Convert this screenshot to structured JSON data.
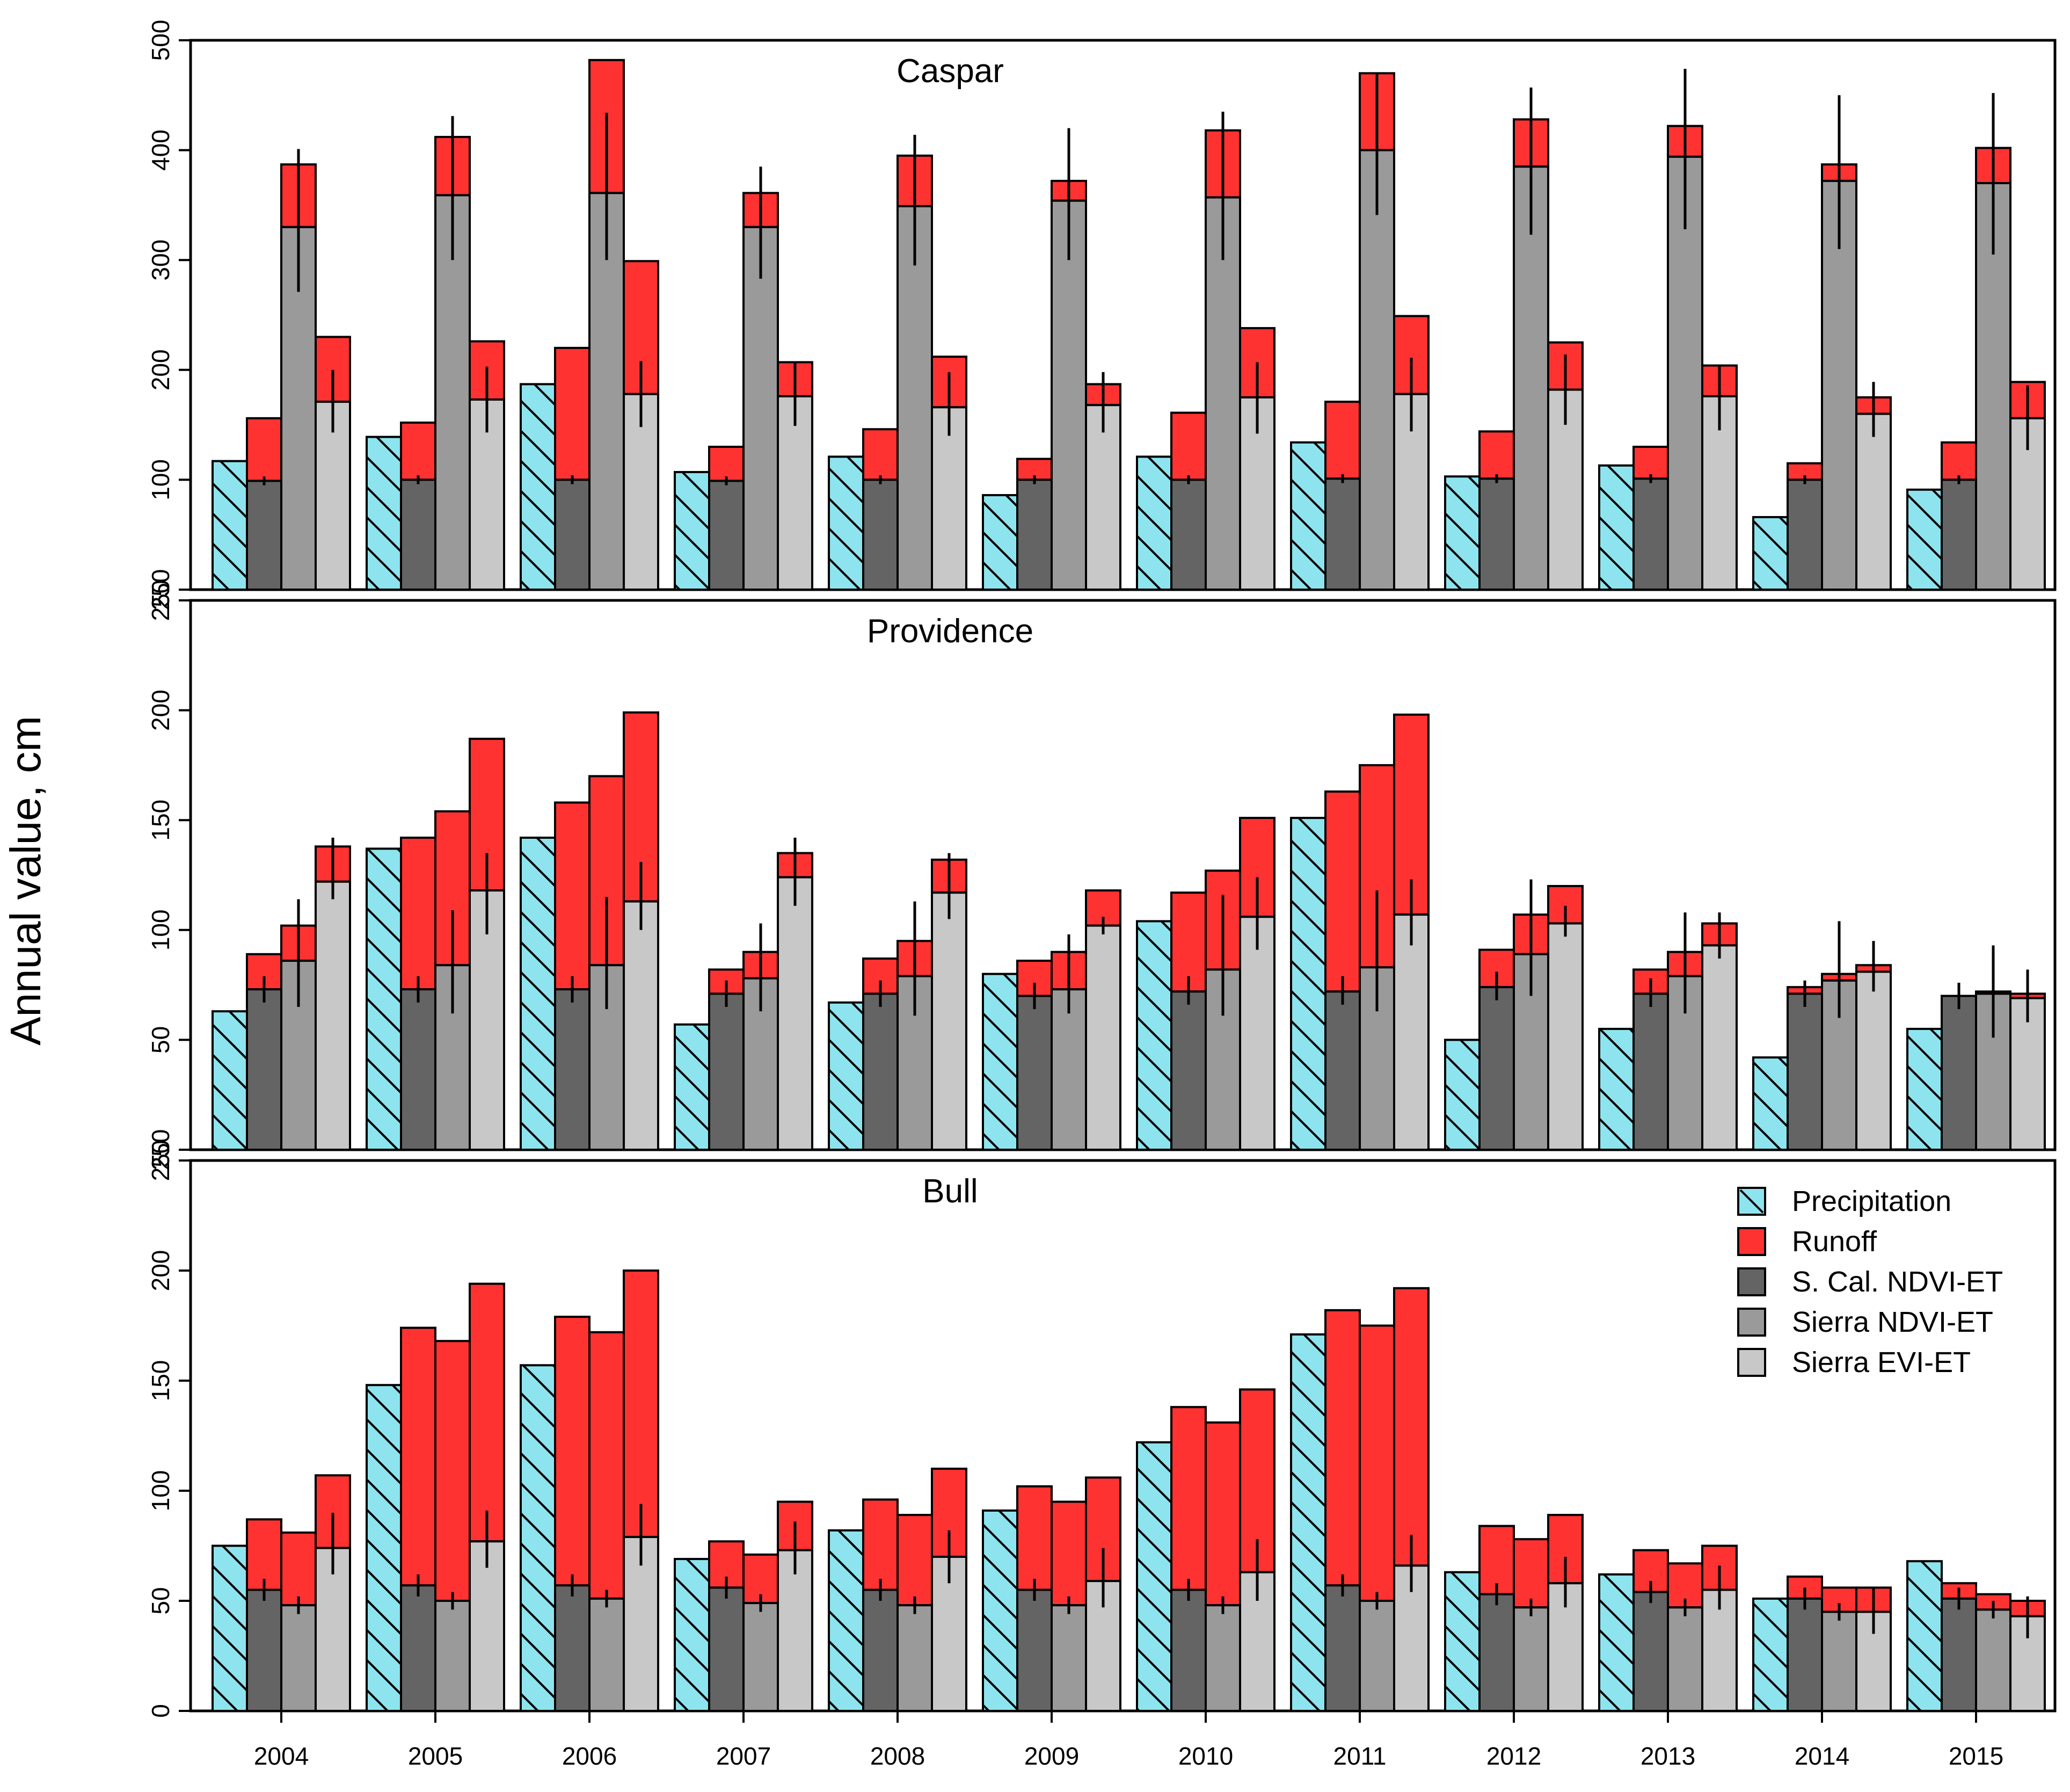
{
  "chart_data": {
    "type": "bar",
    "layout": "three stacked panels, grouped bars per year with runoff stacked on top",
    "ylabel": "Annual value, cm",
    "categories": [
      "2004",
      "2005",
      "2006",
      "2007",
      "2008",
      "2009",
      "2010",
      "2011",
      "2012",
      "2013",
      "2014",
      "2015"
    ],
    "colors": {
      "precipitation": "#8ee4ee",
      "runoff": "#ff3232",
      "scal_ndvi": "#646464",
      "sierra_ndvi": "#9a9a9a",
      "sierra_evi": "#c8c8c8"
    },
    "legend": {
      "placement": "top-right of bottom panel",
      "entries": [
        "Precipitation",
        "Runoff",
        "S. Cal. NDVI-ET",
        "Sierra NDVI-ET",
        "Sierra EVI-ET"
      ]
    },
    "panels": [
      {
        "title": "Caspar",
        "ylim": [
          0,
          500
        ],
        "yticks": [
          100,
          200,
          300,
          400,
          500
        ],
        "extra_bottom_tick": "250",
        "precipitation": [
          117,
          139,
          187,
          107,
          121,
          86,
          121,
          134,
          103,
          113,
          66,
          91
        ],
        "et": {
          "scal_ndvi": [
            99,
            100,
            100,
            99,
            100,
            100,
            100,
            101,
            101,
            101,
            100,
            100
          ],
          "sierra_ndvi": [
            330,
            359,
            361,
            330,
            349,
            354,
            357,
            400,
            385,
            394,
            372,
            370
          ],
          "sierra_evi": [
            171,
            173,
            178,
            176,
            166,
            168,
            175,
            178,
            182,
            176,
            160,
            156
          ]
        },
        "et_plus_runoff": {
          "scal_ndvi": [
            156,
            152,
            220,
            130,
            146,
            119,
            161,
            171,
            144,
            130,
            115,
            134
          ],
          "sierra_ndvi": [
            387,
            412,
            482,
            361,
            395,
            372,
            418,
            470,
            428,
            422,
            387,
            402
          ],
          "sierra_evi": [
            230,
            226,
            299,
            207,
            212,
            187,
            238,
            249,
            225,
            204,
            175,
            189
          ]
        },
        "error_bars": {
          "scal_ndvi": [
            [
              95,
              103
            ],
            [
              96,
              104
            ],
            [
              96,
              104
            ],
            [
              95,
              103
            ],
            [
              96,
              104
            ],
            [
              96,
              104
            ],
            [
              96,
              104
            ],
            [
              97,
              105
            ],
            [
              97,
              105
            ],
            [
              97,
              105
            ],
            [
              96,
              104
            ],
            [
              96,
              104
            ]
          ],
          "sierra_ndvi": [
            [
              271,
              401
            ],
            [
              300,
              431
            ],
            [
              300,
              434
            ],
            [
              283,
              385
            ],
            [
              295,
              414
            ],
            [
              300,
              420
            ],
            [
              300,
              435
            ],
            [
              341,
              469
            ],
            [
              323,
              457
            ],
            [
              328,
              474
            ],
            [
              310,
              450
            ],
            [
              305,
              452
            ]
          ],
          "sierra_evi": [
            [
              143,
              200
            ],
            [
              143,
              203
            ],
            [
              148,
              208
            ],
            [
              149,
              207
            ],
            [
              140,
              198
            ],
            [
              143,
              198
            ],
            [
              142,
              207
            ],
            [
              144,
              211
            ],
            [
              150,
              214
            ],
            [
              145,
              205
            ],
            [
              139,
              189
            ],
            [
              127,
              186
            ]
          ]
        }
      },
      {
        "title": "Providence",
        "ylim": [
          0,
          250
        ],
        "yticks": [
          50,
          100,
          150,
          200,
          250
        ],
        "extra_bottom_tick": "250",
        "precipitation": [
          63,
          137,
          142,
          57,
          67,
          80,
          104,
          151,
          50,
          55,
          42,
          55
        ],
        "et": {
          "scal_ndvi": [
            73,
            73,
            73,
            71,
            71,
            70,
            72,
            72,
            74,
            71,
            71,
            70
          ],
          "sierra_ndvi": [
            86,
            84,
            84,
            78,
            79,
            73,
            82,
            83,
            89,
            79,
            77,
            71
          ],
          "sierra_evi": [
            122,
            118,
            113,
            124,
            117,
            102,
            106,
            107,
            103,
            93,
            81,
            69
          ]
        },
        "et_plus_runoff": {
          "scal_ndvi": [
            89,
            142,
            158,
            82,
            87,
            86,
            117,
            163,
            91,
            82,
            74,
            70
          ],
          "sierra_ndvi": [
            102,
            154,
            170,
            90,
            95,
            90,
            127,
            175,
            107,
            90,
            80,
            72
          ],
          "sierra_evi": [
            138,
            187,
            199,
            135,
            132,
            118,
            151,
            198,
            120,
            103,
            84,
            71
          ]
        },
        "error_bars": {
          "scal_ndvi": [
            [
              67,
              79
            ],
            [
              67,
              79
            ],
            [
              67,
              79
            ],
            [
              65,
              77
            ],
            [
              65,
              77
            ],
            [
              64,
              76
            ],
            [
              66,
              79
            ],
            [
              66,
              79
            ],
            [
              68,
              81
            ],
            [
              65,
              78
            ],
            [
              65,
              77
            ],
            [
              64,
              76
            ]
          ],
          "sierra_ndvi": [
            [
              65,
              114
            ],
            [
              62,
              109
            ],
            [
              64,
              115
            ],
            [
              63,
              103
            ],
            [
              61,
              113
            ],
            [
              62,
              98
            ],
            [
              61,
              116
            ],
            [
              63,
              118
            ],
            [
              70,
              123
            ],
            [
              62,
              108
            ],
            [
              60,
              104
            ],
            [
              51,
              93
            ]
          ],
          "sierra_evi": [
            [
              114,
              142
            ],
            [
              98,
              135
            ],
            [
              100,
              131
            ],
            [
              111,
              142
            ],
            [
              105,
              135
            ],
            [
              98,
              106
            ],
            [
              91,
              124
            ],
            [
              93,
              123
            ],
            [
              97,
              111
            ],
            [
              87,
              108
            ],
            [
              72,
              95
            ],
            [
              58,
              82
            ]
          ]
        }
      },
      {
        "title": "Bull",
        "ylim": [
          0,
          250
        ],
        "yticks": [
          0,
          50,
          100,
          150,
          200,
          250
        ],
        "precipitation": [
          75,
          148,
          157,
          69,
          82,
          91,
          122,
          171,
          63,
          62,
          51,
          68
        ],
        "et": {
          "scal_ndvi": [
            55,
            57,
            57,
            56,
            55,
            55,
            55,
            57,
            53,
            54,
            51,
            51
          ],
          "sierra_ndvi": [
            48,
            50,
            51,
            49,
            48,
            48,
            48,
            50,
            47,
            47,
            45,
            46
          ],
          "sierra_evi": [
            74,
            77,
            79,
            73,
            70,
            59,
            63,
            66,
            58,
            55,
            45,
            43
          ]
        },
        "et_plus_runoff": {
          "scal_ndvi": [
            87,
            174,
            179,
            77,
            96,
            102,
            138,
            182,
            84,
            73,
            61,
            58
          ],
          "sierra_ndvi": [
            81,
            168,
            172,
            71,
            89,
            95,
            131,
            175,
            78,
            67,
            56,
            53
          ],
          "sierra_evi": [
            107,
            194,
            200,
            95,
            110,
            106,
            146,
            192,
            89,
            75,
            56,
            50
          ]
        },
        "error_bars": {
          "scal_ndvi": [
            [
              50,
              60
            ],
            [
              52,
              62
            ],
            [
              52,
              62
            ],
            [
              51,
              61
            ],
            [
              50,
              60
            ],
            [
              50,
              60
            ],
            [
              50,
              60
            ],
            [
              52,
              62
            ],
            [
              48,
              58
            ],
            [
              49,
              59
            ],
            [
              46,
              56
            ],
            [
              46,
              56
            ]
          ],
          "sierra_ndvi": [
            [
              44,
              52
            ],
            [
              46,
              54
            ],
            [
              47,
              55
            ],
            [
              45,
              53
            ],
            [
              44,
              52
            ],
            [
              44,
              52
            ],
            [
              44,
              52
            ],
            [
              46,
              54
            ],
            [
              43,
              51
            ],
            [
              43,
              51
            ],
            [
              41,
              49
            ],
            [
              42,
              50
            ]
          ],
          "sierra_evi": [
            [
              62,
              90
            ],
            [
              65,
              91
            ],
            [
              66,
              94
            ],
            [
              62,
              86
            ],
            [
              58,
              82
            ],
            [
              47,
              74
            ],
            [
              50,
              78
            ],
            [
              54,
              80
            ],
            [
              47,
              70
            ],
            [
              46,
              66
            ],
            [
              35,
              56
            ],
            [
              33,
              52
            ]
          ]
        }
      }
    ]
  }
}
